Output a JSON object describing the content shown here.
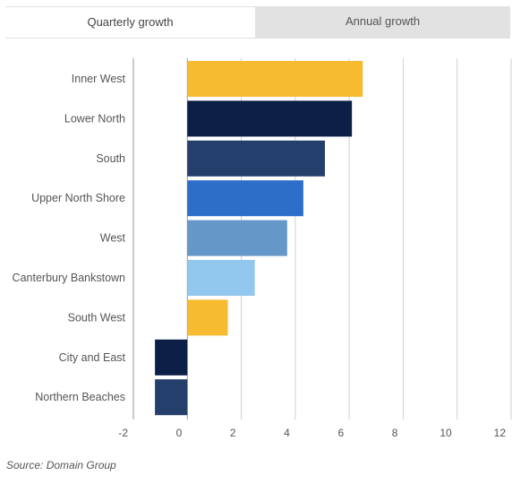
{
  "tabs": [
    {
      "label": "Quarterly growth",
      "active": true
    },
    {
      "label": "Annual growth",
      "active": false
    }
  ],
  "source": "Source: Domain Group",
  "chart_data": {
    "type": "bar",
    "orientation": "horizontal",
    "categories": [
      "Inner West",
      "Lower North",
      "South",
      "Upper North Shore",
      "West",
      "Canterbury Bankstown",
      "South West",
      "City and East",
      "Northern Beaches"
    ],
    "values": [
      6.5,
      6.1,
      5.1,
      4.3,
      3.7,
      2.5,
      1.5,
      -1.2,
      -1.2
    ],
    "colors": [
      "#f6bb30",
      "#0c1f47",
      "#243f6c",
      "#2d6ec9",
      "#6598c9",
      "#92c7ee",
      "#f6bb30",
      "#0c1f47",
      "#243f6c"
    ],
    "xlim": [
      -2,
      12
    ],
    "xticks": [
      "-2",
      "0",
      "2",
      "4",
      "6",
      "8",
      "10",
      "12"
    ],
    "grid": true
  }
}
